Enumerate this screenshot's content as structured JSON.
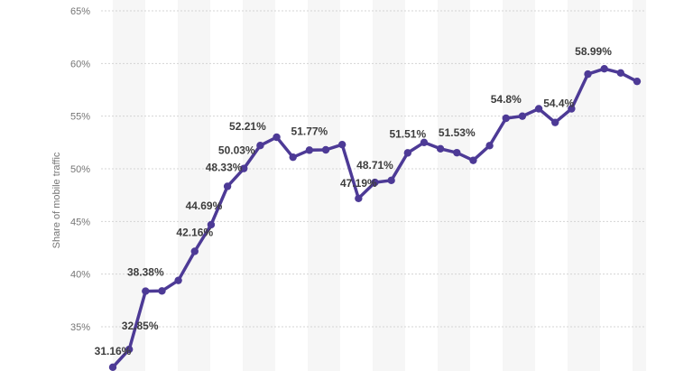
{
  "chart_data": {
    "type": "line",
    "title": "",
    "xlabel": "",
    "ylabel": "Share of mobile traffic",
    "ylim": [
      31.0,
      65.0
    ],
    "y_ticks": [
      "35%",
      "40%",
      "45%",
      "50%",
      "55%",
      "60%",
      "65%"
    ],
    "grid": "horizontal-dashed",
    "alternating_column_bands": true,
    "line_color": "#4d3a96",
    "band_color": "#f6f6f6",
    "series": [
      {
        "values": [
          31.16,
          32.85,
          38.38,
          38.4,
          39.4,
          42.16,
          44.69,
          48.33,
          50.03,
          52.21,
          53.0,
          51.1,
          51.77,
          51.8,
          52.3,
          47.19,
          48.71,
          48.9,
          51.51,
          52.5,
          51.9,
          51.53,
          50.8,
          52.2,
          54.8,
          55.0,
          55.7,
          54.4,
          55.7,
          58.99,
          59.5,
          59.1,
          58.3
        ],
        "data_labels": [
          "31.16%",
          "32.85%",
          "38.38%",
          "",
          "",
          "42.16%",
          "44.69%",
          "48.33%",
          "50.03%",
          "52.21%",
          "",
          "",
          "51.77%",
          "",
          "",
          "47.19%",
          "48.71%",
          "",
          "51.51%",
          "",
          "",
          "51.53%",
          "",
          "",
          "54.8%",
          "",
          "",
          "54.4%",
          "",
          "58.99%",
          "",
          "",
          ""
        ]
      }
    ]
  }
}
